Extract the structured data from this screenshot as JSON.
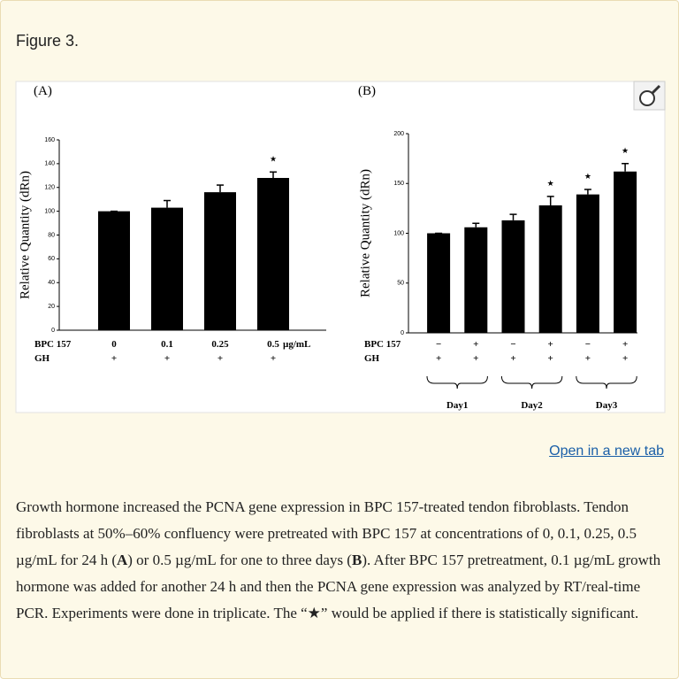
{
  "header": {
    "title": "Figure 3."
  },
  "chart_data": [
    {
      "type": "bar",
      "panel": "(A)",
      "ylabel": "Relative Quantity (dRn)",
      "categories": [
        "0",
        "0.1",
        "0.25",
        "0.5"
      ],
      "category_unit": "µg/mL",
      "row_labels": [
        "BPC 157",
        "GH"
      ],
      "gh": [
        "+",
        "+",
        "+",
        "+"
      ],
      "values": [
        100,
        103,
        116,
        128
      ],
      "errors": [
        0,
        6,
        6,
        5
      ],
      "significance": [
        null,
        null,
        null,
        "★"
      ],
      "color": "#000000",
      "ylim": [
        0,
        160
      ],
      "yticks": [
        0,
        20,
        40,
        60,
        80,
        100,
        120,
        140,
        160
      ]
    },
    {
      "type": "bar",
      "panel": "(B)",
      "ylabel": "Relative Quantity (dRn)",
      "categories": [
        "−",
        "+",
        "−",
        "+",
        "−",
        "+"
      ],
      "row_labels": [
        "BPC 157",
        "GH"
      ],
      "gh": [
        "+",
        "+",
        "+",
        "+",
        "+",
        "+"
      ],
      "values": [
        100,
        106,
        113,
        128,
        139,
        162
      ],
      "errors": [
        0,
        4,
        6,
        9,
        5,
        8
      ],
      "significance": [
        null,
        null,
        null,
        "★",
        "★",
        "★"
      ],
      "groups": [
        "Day1",
        "Day2",
        "Day3"
      ],
      "color": "#000000",
      "ylim": [
        0,
        200
      ],
      "yticks": [
        0,
        50,
        100,
        150,
        200
      ]
    }
  ],
  "link": "Open in a new tab",
  "caption": [
    "Growth hormone increased the PCNA gene expression in BPC 157-treated tendon fibroblasts. Tendon fibroblasts at 50%–60% confluency were pretreated with BPC 157 at concentrations of 0, 0.1, 0.25, 0.5 µg/mL for 24 h (",
    "A",
    ") or 0.5 µg/mL for one to three days (",
    "B",
    "). After BPC 157 pretreatment, 0.1 µg/mL growth hormone was added for another 24 h and then the PCNA gene expression was analyzed by RT/real-time PCR. Experiments were done in triplicate. The “★” would be applied if there is statistically significant."
  ]
}
